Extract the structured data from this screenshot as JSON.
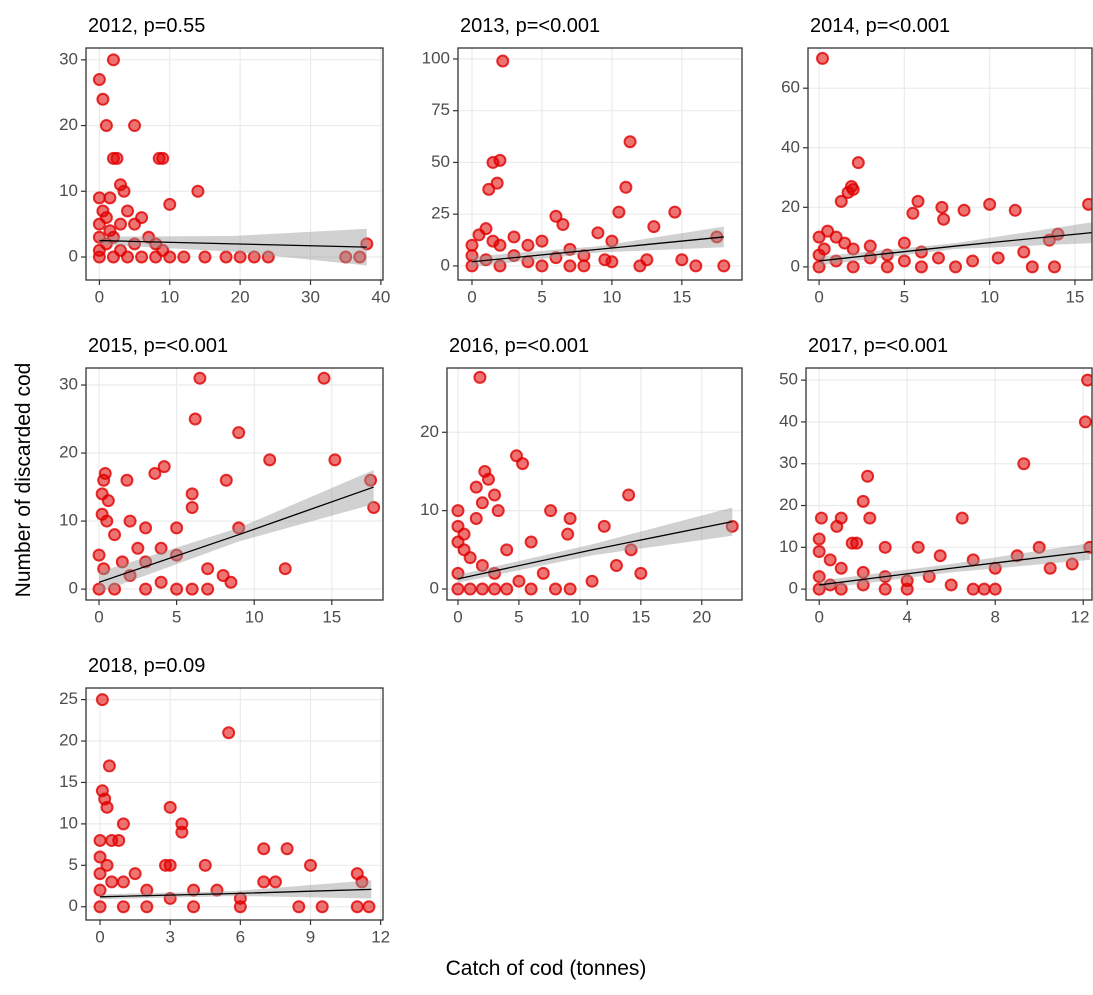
{
  "x_label": "Catch of cod (tonnes)",
  "y_label": "Number of discarded cod",
  "chart_data": [
    {
      "type": "scatter",
      "title": "2012, p=0.55",
      "xlim": [
        -1.9,
        40.3
      ],
      "ylim": [
        -3.5,
        31.8
      ],
      "xticks": [
        0,
        10,
        20,
        30,
        40
      ],
      "yticks": [
        0,
        10,
        20,
        30
      ],
      "grid": true,
      "color": "#e00000",
      "x": [
        0,
        0.5,
        1,
        1.5,
        2,
        2,
        2.5,
        3,
        3.5,
        5,
        8.5,
        9,
        14,
        10,
        0,
        0.5,
        1,
        1.5,
        2,
        3,
        4,
        5,
        6,
        7,
        8,
        9,
        0,
        2,
        4,
        6,
        8,
        10,
        12,
        15,
        18,
        20,
        22,
        24,
        35,
        37,
        38,
        1,
        3,
        5,
        0,
        0,
        0
      ],
      "y": [
        27,
        24,
        20,
        9,
        30,
        15,
        15,
        11,
        10,
        20,
        15,
        15,
        10,
        8,
        5,
        7,
        6,
        4,
        3,
        5,
        7,
        5,
        6,
        3,
        2,
        1,
        0,
        0,
        0,
        0,
        0,
        0,
        0,
        0,
        0,
        0,
        0,
        0,
        0,
        0,
        2,
        2,
        1,
        2,
        1,
        3,
        9
      ],
      "fit": {
        "x": [
          0,
          19,
          38
        ],
        "y": [
          2.5,
          2.0,
          1.5
        ],
        "lower": [
          1.9,
          0.8,
          -1.3
        ],
        "upper": [
          3.1,
          3.2,
          4.3
        ]
      }
    },
    {
      "type": "scatter",
      "title": "2013, p=<0.001",
      "xlim": [
        -1,
        19.3
      ],
      "ylim": [
        -6.8,
        105.3
      ],
      "xticks": [
        0,
        5,
        10,
        15
      ],
      "yticks": [
        0,
        25,
        50,
        75,
        100
      ],
      "grid": true,
      "color": "#e00000",
      "x": [
        2.2,
        1.5,
        2,
        1.8,
        1.2,
        11.3,
        11,
        14.5,
        10.5,
        13,
        6,
        6.5,
        9,
        10,
        17.5,
        0.5,
        1,
        1.5,
        2,
        3,
        4,
        5,
        7,
        8,
        9.5,
        12.5,
        15,
        16,
        18,
        0,
        0,
        0,
        1,
        2,
        3,
        4,
        5,
        6,
        7,
        8,
        10,
        12
      ],
      "y": [
        99,
        50,
        51,
        40,
        37,
        60,
        38,
        26,
        26,
        19,
        24,
        20,
        16,
        12,
        14,
        15,
        18,
        12,
        10,
        14,
        10,
        12,
        8,
        5,
        3,
        3,
        3,
        0,
        0,
        0,
        5,
        10,
        3,
        0,
        5,
        2,
        0,
        4,
        0,
        0,
        2,
        0
      ],
      "fit": {
        "x": [
          0,
          9,
          18
        ],
        "y": [
          2,
          8,
          14
        ],
        "lower": [
          -0.5,
          6.5,
          9
        ],
        "upper": [
          4.5,
          9.5,
          19
        ]
      }
    },
    {
      "type": "scatter",
      "title": "2014, p=<0.001",
      "xlim": [
        -0.65,
        16
      ],
      "ylim": [
        -4.4,
        73.5
      ],
      "xticks": [
        0,
        5,
        10,
        15
      ],
      "yticks": [
        0,
        20,
        40,
        60
      ],
      "grid": true,
      "color": "#e00000",
      "x": [
        0.2,
        2.3,
        1.9,
        1.7,
        1.3,
        2,
        5.8,
        5.5,
        7.2,
        7.3,
        8.5,
        10,
        11.5,
        15.8,
        14,
        13.5,
        0,
        0.5,
        1,
        1.5,
        2,
        3,
        4,
        5,
        6,
        7,
        9,
        10.5,
        12,
        12.5,
        13.8,
        0,
        1,
        2,
        3,
        4,
        5,
        6,
        8,
        0,
        0.3
      ],
      "y": [
        70,
        35,
        27,
        25,
        22,
        26,
        22,
        18,
        20,
        16,
        19,
        21,
        19,
        21,
        11,
        9,
        10,
        12,
        10,
        8,
        6,
        7,
        4,
        8,
        5,
        3,
        2,
        3,
        5,
        0,
        0,
        0,
        2,
        0,
        3,
        0,
        2,
        0,
        0,
        4,
        6
      ],
      "fit": {
        "x": [
          0,
          8,
          16
        ],
        "y": [
          2,
          7,
          11.5
        ],
        "lower": [
          0.5,
          6,
          8
        ],
        "upper": [
          3.5,
          8,
          15
        ]
      }
    },
    {
      "type": "scatter",
      "title": "2015, p=<0.001",
      "xlim": [
        -0.84,
        18.3
      ],
      "ylim": [
        -1.6,
        32.5
      ],
      "xticks": [
        0,
        5,
        10,
        15
      ],
      "yticks": [
        0,
        10,
        20,
        30
      ],
      "grid": true,
      "color": "#e00000",
      "x": [
        6.5,
        14.5,
        6.2,
        9,
        11,
        15.2,
        8.2,
        17.5,
        17.7,
        3.6,
        4.2,
        0.4,
        0.3,
        1.8,
        0.2,
        0.6,
        12,
        9,
        5,
        3,
        0.2,
        0.5,
        2,
        1,
        2.5,
        3,
        4,
        5,
        6,
        6,
        7,
        8,
        8.5,
        0,
        1,
        2,
        3,
        4,
        5,
        6,
        7,
        0,
        0.3,
        1.5
      ],
      "y": [
        31,
        31,
        25,
        23,
        19,
        19,
        16,
        16,
        12,
        17,
        18,
        17,
        16,
        16,
        14,
        13,
        3,
        9,
        9,
        9,
        11,
        10,
        10,
        8,
        6,
        4,
        6,
        5,
        12,
        14,
        3,
        2,
        1,
        0,
        0,
        2,
        0,
        1,
        0,
        0,
        0,
        5,
        3,
        4
      ],
      "fit": {
        "x": [
          0,
          9,
          17.7
        ],
        "y": [
          1,
          8,
          15
        ],
        "lower": [
          -0.5,
          7,
          12.5
        ],
        "upper": [
          2.5,
          9,
          17.5
        ]
      }
    },
    {
      "type": "scatter",
      "title": "2016, p=<0.001",
      "xlim": [
        -0.9,
        23.3
      ],
      "ylim": [
        -1.4,
        28.2
      ],
      "xticks": [
        0,
        5,
        10,
        15,
        20
      ],
      "yticks": [
        0,
        10,
        20
      ],
      "grid": true,
      "color": "#e00000",
      "x": [
        1.8,
        4.8,
        5.3,
        2.2,
        2.5,
        1.5,
        3,
        14,
        2,
        3.3,
        7.6,
        9.2,
        12,
        22.5,
        9,
        6,
        14.2,
        15,
        13,
        11,
        0,
        0,
        0,
        0.5,
        1,
        2,
        3,
        4,
        5,
        6,
        7,
        8,
        9.2,
        0,
        1,
        2,
        3,
        4,
        0,
        0.5,
        1.5
      ],
      "y": [
        27,
        17,
        16,
        15,
        14,
        13,
        12,
        12,
        11,
        10,
        10,
        9,
        8,
        8,
        7,
        6,
        5,
        2,
        3,
        1,
        10,
        8,
        6,
        5,
        4,
        3,
        2,
        5,
        1,
        0,
        2,
        0,
        0,
        0,
        0,
        0,
        0,
        0,
        2,
        7,
        9
      ],
      "fit": {
        "x": [
          0,
          11,
          22.5
        ],
        "y": [
          1.3,
          5,
          8.6
        ],
        "lower": [
          0.8,
          4.3,
          6.8
        ],
        "upper": [
          1.8,
          5.7,
          10.4
        ]
      }
    },
    {
      "type": "scatter",
      "title": "2017, p=<0.001",
      "xlim": [
        -0.6,
        12.4
      ],
      "ylim": [
        -2.6,
        52.9
      ],
      "xticks": [
        0,
        4,
        8,
        12
      ],
      "yticks": [
        0,
        10,
        20,
        30,
        40,
        50
      ],
      "grid": true,
      "color": "#e00000",
      "x": [
        12.2,
        12.1,
        9.3,
        2.2,
        2,
        2.3,
        0.1,
        1,
        0.8,
        6.5,
        12.3,
        10,
        4.5,
        3,
        1.5,
        1.7,
        5.5,
        7,
        8,
        9,
        10.5,
        11.5,
        0,
        0,
        0.5,
        1,
        2,
        3,
        4,
        5,
        6,
        7,
        7.5,
        8,
        0,
        1,
        2,
        3,
        4,
        0,
        0.5
      ],
      "y": [
        50,
        40,
        30,
        27,
        21,
        17,
        17,
        17,
        15,
        17,
        10,
        10,
        10,
        10,
        11,
        11,
        8,
        7,
        5,
        8,
        5,
        6,
        12,
        9,
        7,
        5,
        4,
        3,
        2,
        3,
        1,
        0,
        0,
        0,
        0,
        0,
        1,
        0,
        0,
        3,
        1
      ],
      "fit": {
        "x": [
          0,
          6,
          12.3
        ],
        "y": [
          1,
          5,
          9
        ],
        "lower": [
          0,
          4,
          7
        ],
        "upper": [
          2,
          6,
          11
        ]
      }
    },
    {
      "type": "scatter",
      "title": "2018, p=0.09",
      "xlim": [
        -0.6,
        12.1
      ],
      "ylim": [
        -1.6,
        26.4
      ],
      "xticks": [
        0,
        3,
        6,
        9,
        12
      ],
      "yticks": [
        0,
        5,
        10,
        15,
        20,
        25
      ],
      "grid": true,
      "color": "#e00000",
      "x": [
        0.1,
        5.5,
        0.4,
        0.1,
        0.2,
        0.3,
        3,
        3.5,
        3.5,
        0.5,
        0,
        1,
        0.8,
        7,
        8,
        9,
        11,
        11.2,
        4.5,
        3,
        2.8,
        0,
        0,
        0.5,
        1,
        2,
        3,
        4,
        5,
        6,
        7,
        7.5,
        8.5,
        9.5,
        11,
        11.5,
        0,
        1,
        2,
        4,
        6,
        0,
        1.5,
        0.3
      ],
      "y": [
        25,
        21,
        17,
        14,
        13,
        12,
        12,
        10,
        9,
        8,
        8,
        10,
        8,
        7,
        7,
        5,
        4,
        3,
        5,
        5,
        5,
        6,
        4,
        3,
        3,
        2,
        1,
        2,
        2,
        1,
        3,
        3,
        0,
        0,
        0,
        0,
        0,
        0,
        0,
        0,
        0,
        2,
        4,
        5
      ],
      "fit": {
        "x": [
          0,
          5.8,
          11.6
        ],
        "y": [
          1.2,
          1.6,
          2.1
        ],
        "lower": [
          0.9,
          1.3,
          1.0
        ],
        "upper": [
          1.5,
          1.9,
          3.2
        ]
      }
    }
  ]
}
